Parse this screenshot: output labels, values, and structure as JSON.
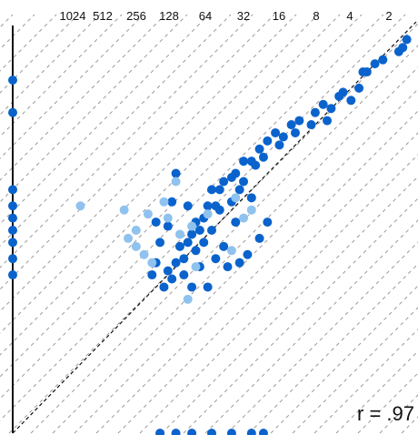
{
  "chart_data": {
    "type": "scatter",
    "title": "",
    "xlabel": "",
    "ylabel": "",
    "xlim": [
      0,
      1
    ],
    "ylim": [
      0,
      1
    ],
    "ratio_guide_labels": [
      "1024",
      "512",
      "256",
      "128",
      "64",
      "32",
      "16",
      "8",
      "4",
      "2"
    ],
    "annotation": "r = .97",
    "grid": false,
    "colors": {
      "dark": "#0a63cc",
      "light": "#8fc2ee",
      "axis": "#111111",
      "guide": "#9a9a9a"
    },
    "series": [
      {
        "color_key": "dark",
        "points": [
          [
            0.99,
            0.97
          ],
          [
            0.98,
            0.95
          ],
          [
            0.97,
            0.94
          ],
          [
            0.93,
            0.92
          ],
          [
            0.91,
            0.91
          ],
          [
            0.89,
            0.89
          ],
          [
            0.88,
            0.89
          ],
          [
            0.87,
            0.85
          ],
          [
            0.83,
            0.84
          ],
          [
            0.85,
            0.82
          ],
          [
            0.82,
            0.83
          ],
          [
            0.8,
            0.8
          ],
          [
            0.78,
            0.81
          ],
          [
            0.76,
            0.79
          ],
          [
            0.79,
            0.77
          ],
          [
            0.75,
            0.76
          ],
          [
            0.72,
            0.77
          ],
          [
            0.71,
            0.74
          ],
          [
            0.7,
            0.76
          ],
          [
            0.68,
            0.73
          ],
          [
            0.66,
            0.74
          ],
          [
            0.67,
            0.71
          ],
          [
            0.64,
            0.72
          ],
          [
            0.62,
            0.7
          ],
          [
            0.63,
            0.68
          ],
          [
            0.61,
            0.66
          ],
          [
            0.6,
            0.67
          ],
          [
            0.58,
            0.67
          ],
          [
            0.56,
            0.64
          ],
          [
            0.58,
            0.62
          ],
          [
            0.57,
            0.6
          ],
          [
            0.55,
            0.63
          ],
          [
            0.53,
            0.62
          ],
          [
            0.52,
            0.6
          ],
          [
            0.5,
            0.6
          ],
          [
            0.55,
            0.57
          ],
          [
            0.51,
            0.56
          ],
          [
            0.49,
            0.56
          ],
          [
            0.48,
            0.53
          ],
          [
            0.46,
            0.52
          ],
          [
            0.47,
            0.5
          ],
          [
            0.45,
            0.49
          ],
          [
            0.44,
            0.47
          ],
          [
            0.46,
            0.45
          ],
          [
            0.42,
            0.46
          ],
          [
            0.43,
            0.43
          ],
          [
            0.41,
            0.42
          ],
          [
            0.39,
            0.4
          ],
          [
            0.4,
            0.38
          ],
          [
            0.38,
            0.36
          ],
          [
            0.52,
            0.55
          ],
          [
            0.5,
            0.5
          ],
          [
            0.48,
            0.47
          ],
          [
            0.56,
            0.52
          ],
          [
            0.6,
            0.58
          ],
          [
            0.53,
            0.46
          ],
          [
            0.51,
            0.43
          ],
          [
            0.54,
            0.41
          ],
          [
            0.47,
            0.41
          ],
          [
            0.49,
            0.36
          ],
          [
            0.45,
            0.36
          ],
          [
            0.43,
            0.39
          ],
          [
            0.57,
            0.42
          ],
          [
            0.59,
            0.44
          ],
          [
            0.62,
            0.48
          ],
          [
            0.64,
            0.52
          ],
          [
            0.36,
            0.42
          ],
          [
            0.35,
            0.39
          ],
          [
            0.37,
            0.47
          ],
          [
            0.39,
            0.51
          ],
          [
            0.36,
            0.52
          ],
          [
            0.4,
            0.57
          ],
          [
            0.41,
            0.64
          ],
          [
            0.44,
            0.56
          ],
          [
            0.0,
            0.87
          ],
          [
            0.0,
            0.79
          ],
          [
            0.0,
            0.6
          ],
          [
            0.0,
            0.56
          ],
          [
            0.0,
            0.53
          ],
          [
            0.0,
            0.5
          ],
          [
            0.0,
            0.47
          ],
          [
            0.0,
            0.43
          ],
          [
            0.0,
            0.39
          ],
          [
            0.37,
            0.0
          ],
          [
            0.41,
            0.0
          ],
          [
            0.45,
            0.0
          ],
          [
            0.5,
            0.0
          ],
          [
            0.55,
            0.0
          ],
          [
            0.6,
            0.0
          ],
          [
            0.63,
            0.0
          ]
        ]
      },
      {
        "color_key": "light",
        "points": [
          [
            0.41,
            0.62
          ],
          [
            0.38,
            0.57
          ],
          [
            0.34,
            0.54
          ],
          [
            0.31,
            0.5
          ],
          [
            0.29,
            0.48
          ],
          [
            0.31,
            0.46
          ],
          [
            0.33,
            0.44
          ],
          [
            0.35,
            0.42
          ],
          [
            0.39,
            0.53
          ],
          [
            0.42,
            0.49
          ],
          [
            0.45,
            0.51
          ],
          [
            0.49,
            0.54
          ],
          [
            0.56,
            0.58
          ],
          [
            0.58,
            0.53
          ],
          [
            0.44,
            0.33
          ],
          [
            0.17,
            0.56
          ],
          [
            0.28,
            0.55
          ],
          [
            0.46,
            0.41
          ],
          [
            0.55,
            0.45
          ],
          [
            0.6,
            0.55
          ]
        ]
      }
    ]
  }
}
